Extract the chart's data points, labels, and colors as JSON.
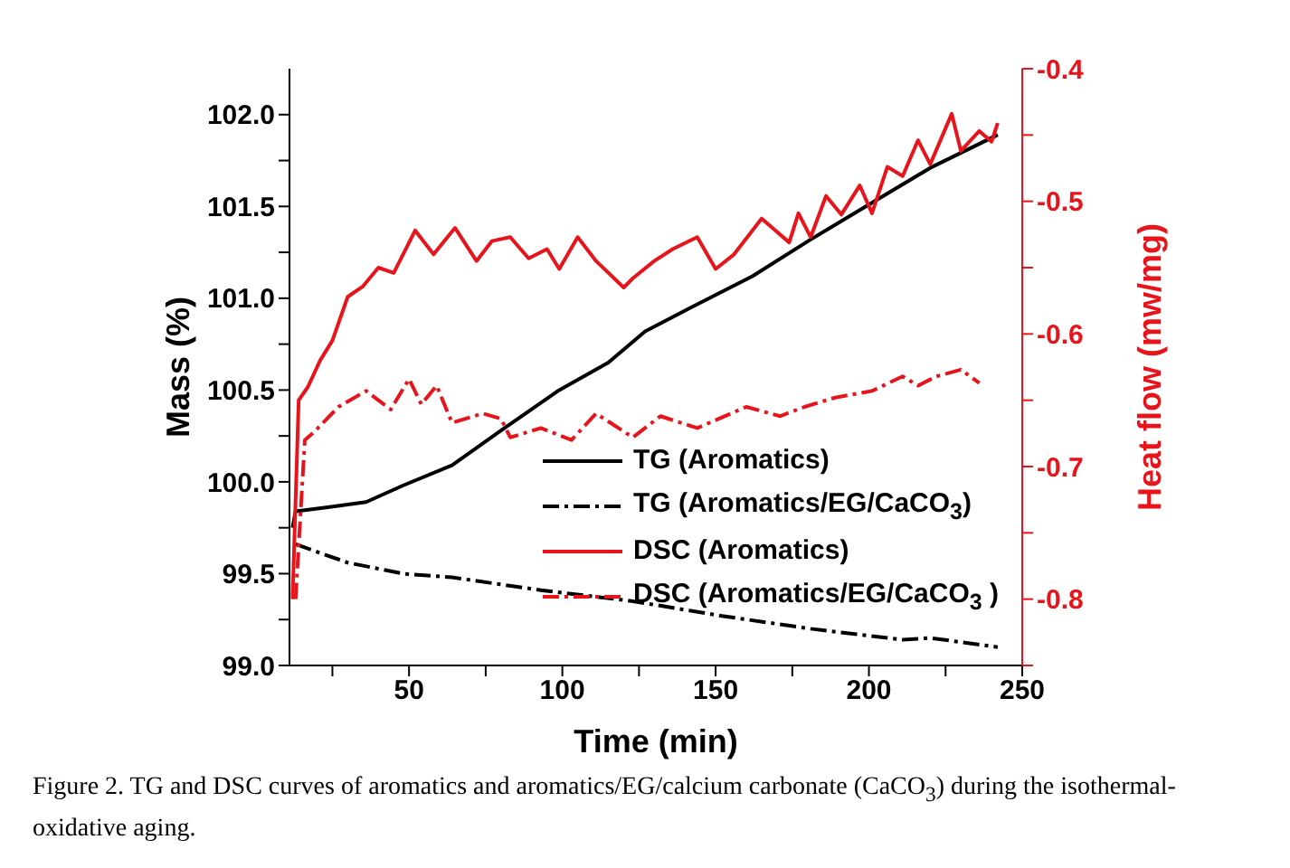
{
  "chart_data": {
    "type": "line",
    "xlabel": "Time (min)",
    "ylabel": "Mass (%)",
    "y2label": "Heat flow (mw/mg)",
    "xlim": [
      11,
      250
    ],
    "xticks": [
      {
        "value": 25,
        "label": null
      },
      50,
      {
        "value": 75,
        "label": null
      },
      100,
      {
        "value": 125,
        "label": null
      },
      150,
      {
        "value": 175,
        "label": null
      },
      200,
      {
        "value": 225,
        "label": null
      },
      250
    ],
    "ylim": [
      99.0,
      102.25
    ],
    "yticks": [
      {
        "value": 99.0,
        "label": "99.0"
      },
      {
        "value": 99.25,
        "label": null
      },
      {
        "value": 99.5,
        "label": "99.5"
      },
      {
        "value": 99.75,
        "label": null
      },
      {
        "value": 100.0,
        "label": "100.0"
      },
      {
        "value": 100.25,
        "label": null
      },
      {
        "value": 100.5,
        "label": "100.5"
      },
      {
        "value": 100.75,
        "label": null
      },
      {
        "value": 101.0,
        "label": "101.0"
      },
      {
        "value": 101.25,
        "label": null
      },
      {
        "value": 101.5,
        "label": "101.5"
      },
      {
        "value": 101.75,
        "label": null
      },
      {
        "value": 102.0,
        "label": "102.0"
      }
    ],
    "y2lim": [
      -0.85,
      -0.4
    ],
    "y2ticks": [
      {
        "value": -0.85,
        "label": null
      },
      -0.8,
      {
        "value": -0.75,
        "label": null
      },
      -0.7,
      {
        "value": -0.65,
        "label": null
      },
      -0.6,
      {
        "value": -0.55,
        "label": null
      },
      -0.5,
      {
        "value": -0.45,
        "label": null
      },
      -0.4
    ],
    "grid": false,
    "legend": "bottom right",
    "marker": "none",
    "series": [
      {
        "name": "TG (Aromatics)",
        "color": "#000000",
        "line_style": "solid",
        "x": [
          12,
          13,
          23,
          36,
          48,
          64,
          80,
          99,
          115,
          127,
          142,
          162,
          181,
          200,
          220,
          242
        ],
        "values": [
          99.75,
          99.84,
          99.86,
          99.89,
          99.98,
          100.09,
          100.28,
          100.5,
          100.65,
          100.82,
          100.95,
          101.12,
          101.32,
          101.51,
          101.71,
          101.89
        ]
      },
      {
        "name": "TG (Aromatics/EG/CaCO$_{3}$)",
        "color": "#000000",
        "line_style": "dashed",
        "x": [
          13,
          30,
          48,
          64,
          93,
          123,
          152,
          181,
          211,
          220,
          242
        ],
        "values": [
          99.66,
          99.56,
          99.5,
          99.48,
          99.41,
          99.35,
          99.27,
          99.2,
          99.14,
          99.15,
          99.1
        ]
      },
      {
        "name": "DSC (Aromatics)",
        "color": "#e8141b",
        "line_style": "solid",
        "axis": "y2",
        "x": [
          12,
          14,
          17,
          21,
          25,
          30,
          35,
          40,
          45,
          52,
          58,
          65,
          72,
          77,
          83,
          89,
          95,
          99,
          105,
          111,
          120,
          123,
          130,
          136,
          144,
          150,
          156,
          165,
          174,
          177,
          181,
          186,
          191,
          197,
          201,
          206,
          211,
          216,
          220,
          227,
          230,
          236,
          240,
          242
        ],
        "values": [
          -0.8,
          -0.65,
          -0.64,
          -0.62,
          -0.605,
          -0.572,
          -0.564,
          -0.55,
          -0.554,
          -0.522,
          -0.54,
          -0.52,
          -0.545,
          -0.53,
          -0.527,
          -0.543,
          -0.536,
          -0.551,
          -0.527,
          -0.545,
          -0.565,
          -0.558,
          -0.545,
          -0.536,
          -0.527,
          -0.551,
          -0.54,
          -0.513,
          -0.531,
          -0.509,
          -0.527,
          -0.496,
          -0.51,
          -0.488,
          -0.509,
          -0.474,
          -0.481,
          -0.454,
          -0.472,
          -0.434,
          -0.462,
          -0.447,
          -0.455,
          -0.441
        ]
      },
      {
        "name": "DSC (Aromatics/EG/CaCO$_{3}$ )",
        "color": "#e8141b",
        "line_style": "dashed",
        "axis": "y2",
        "x": [
          13,
          16,
          19,
          27,
          36,
          44,
          50,
          54,
          59,
          64,
          74,
          80,
          83,
          93,
          103,
          111,
          123,
          132,
          144,
          160,
          171,
          179,
          189,
          201,
          211,
          216,
          222,
          230,
          236
        ],
        "values": [
          -0.8,
          -0.68,
          -0.674,
          -0.655,
          -0.643,
          -0.657,
          -0.634,
          -0.653,
          -0.639,
          -0.667,
          -0.66,
          -0.664,
          -0.678,
          -0.671,
          -0.68,
          -0.66,
          -0.678,
          -0.662,
          -0.671,
          -0.655,
          -0.662,
          -0.655,
          -0.648,
          -0.643,
          -0.632,
          -0.639,
          -0.632,
          -0.627,
          -0.637
        ]
      }
    ],
    "annotations": [
      "Figure 2. TG and DSC curves of aromatics and aromatics/EG/calcium carbonate (CaCO$_{3}$) during the isothermal-oxidative aging."
    ]
  }
}
